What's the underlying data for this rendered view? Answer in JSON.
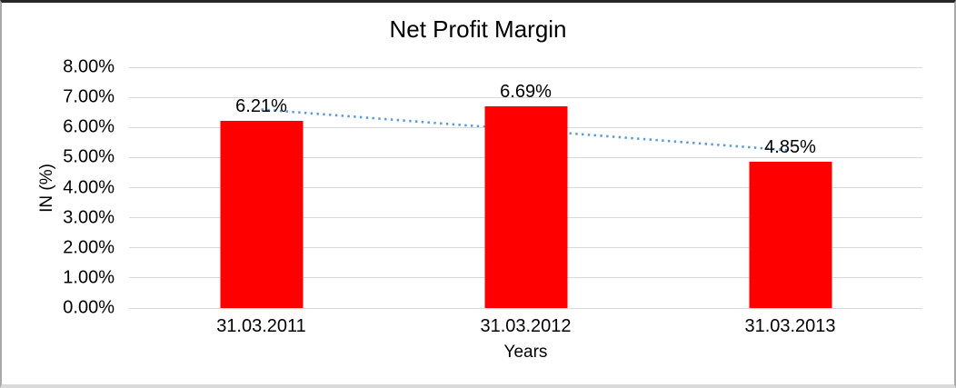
{
  "chart_data": {
    "type": "bar",
    "title": "Net Profit Margin",
    "categories": [
      "31.03.2011",
      "31.03.2012",
      "31.03.2013"
    ],
    "values": [
      6.21,
      6.69,
      4.85
    ],
    "data_labels": [
      "6.21%",
      "6.69%",
      "4.85%"
    ],
    "xlabel": "Years",
    "ylabel": "IN (%)",
    "ylim": [
      0,
      8
    ],
    "ytick_step": 1,
    "ytick_labels": [
      "0.00%",
      "1.00%",
      "2.00%",
      "3.00%",
      "4.00%",
      "5.00%",
      "6.00%",
      "7.00%",
      "8.00%"
    ],
    "grid": true,
    "legend": "none",
    "bar_color": "#FF0000",
    "gridline_color": "#D9D9D9",
    "text_color": "#000000",
    "trendline": {
      "type": "linear",
      "style": "dotted",
      "color": "#5B9BD5"
    }
  }
}
